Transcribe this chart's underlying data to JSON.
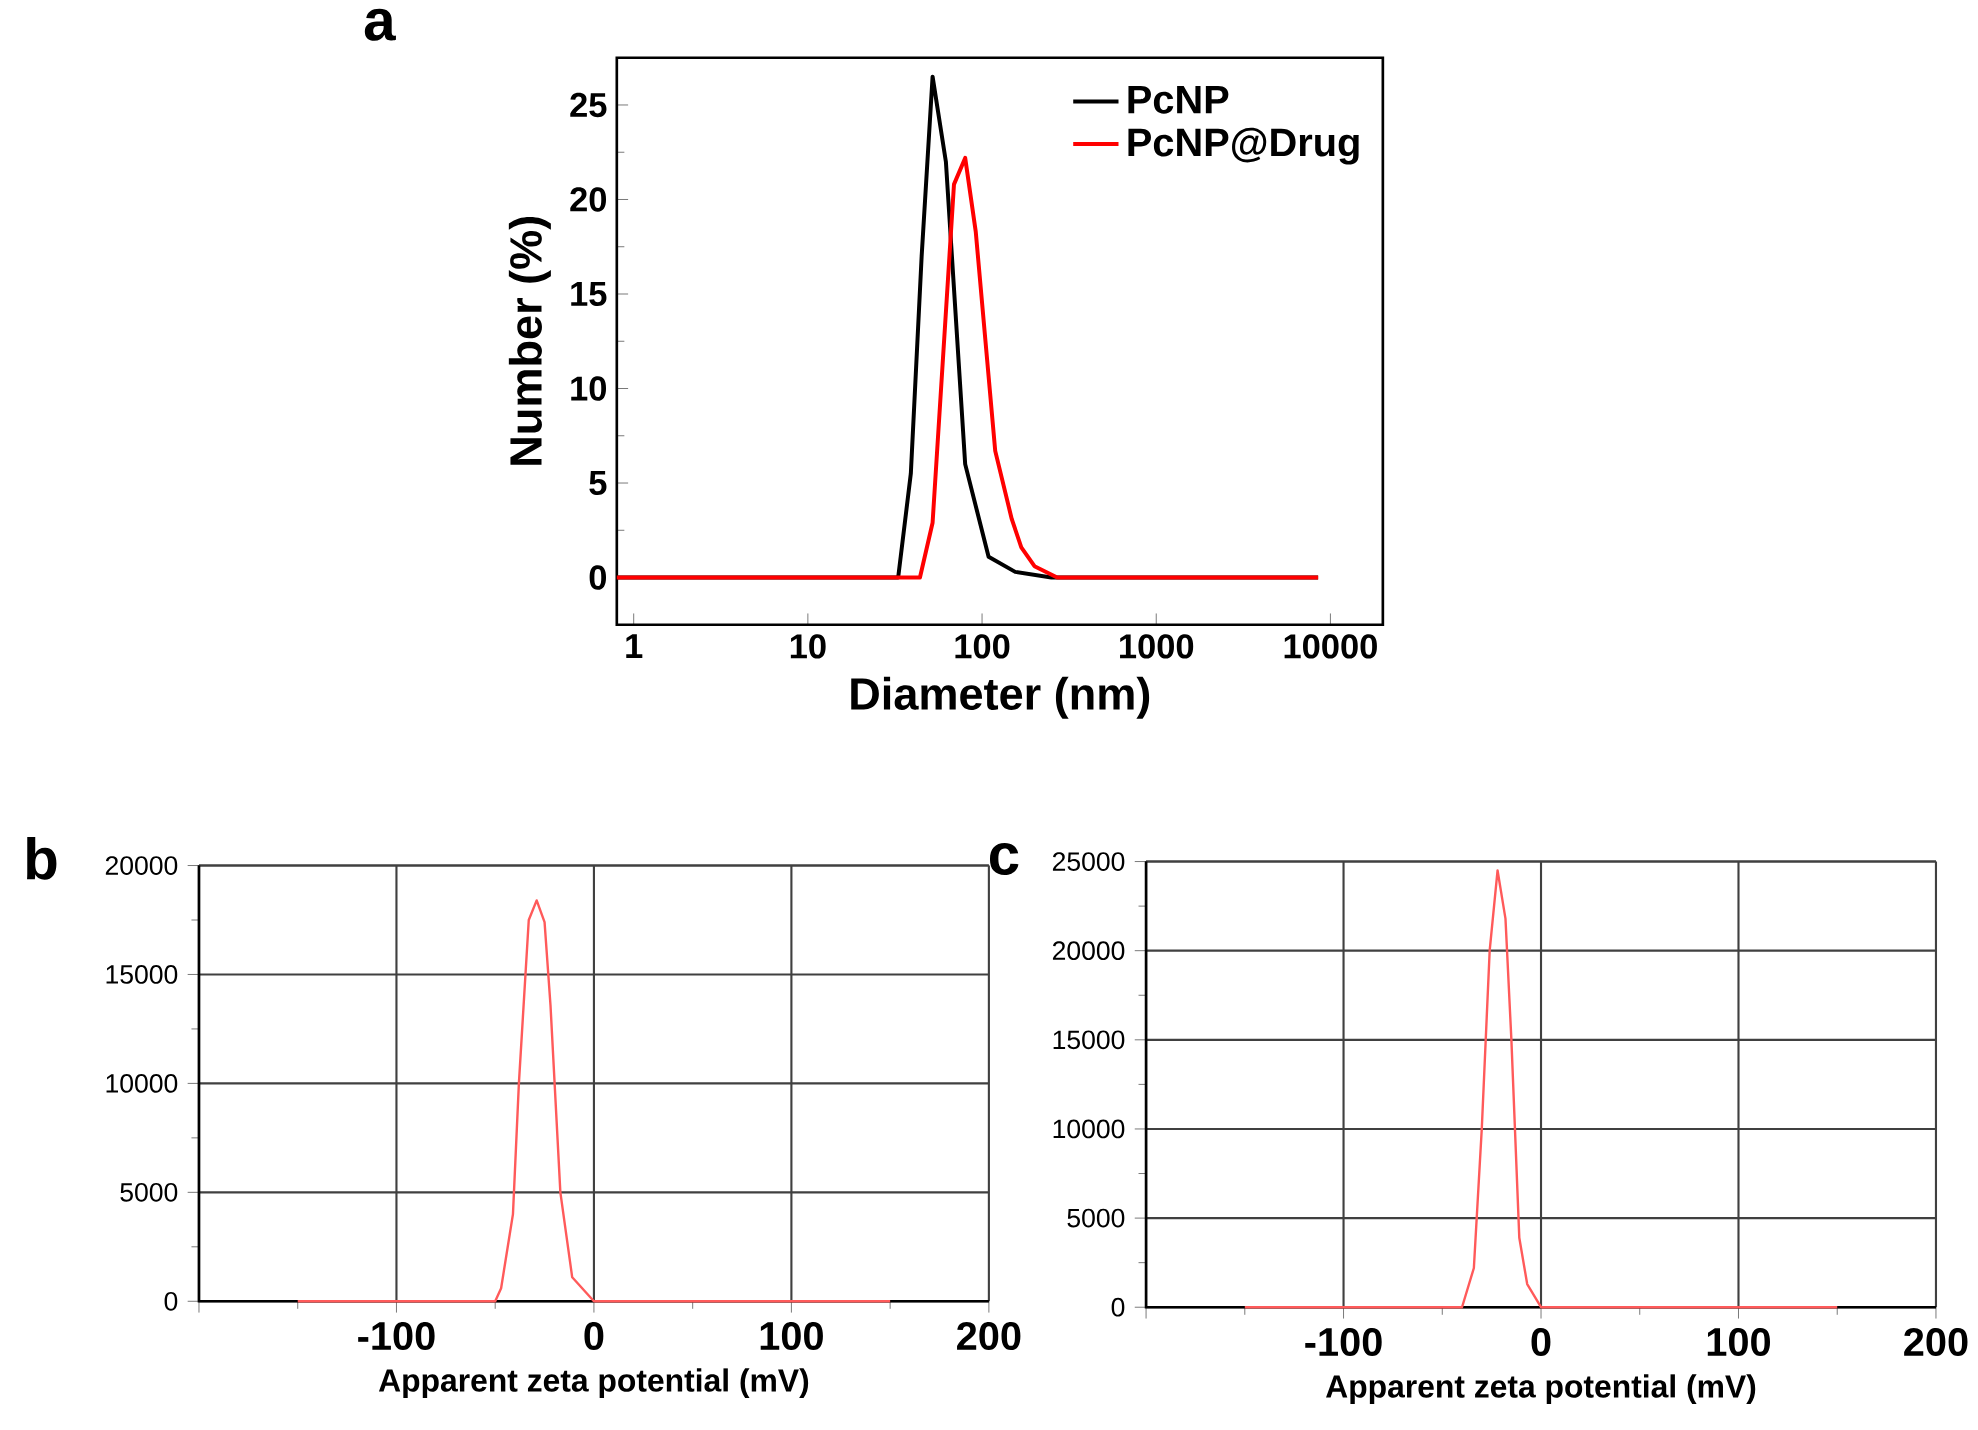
{
  "chart_data": [
    {
      "type": "line",
      "title": "a",
      "xlabel": "Diameter (nm)",
      "ylabel": "Number (%)",
      "log": "x",
      "xlim": [
        0.8,
        20000
      ],
      "ylim": [
        -2.5,
        27.5
      ],
      "xticks": [
        1,
        10,
        100,
        1000,
        10000
      ],
      "yticks": [
        0,
        5,
        10,
        15,
        20,
        25
      ],
      "grid": false,
      "legend": "top right",
      "marker": "none",
      "line_style": "solid",
      "series": [
        {
          "name": "PcNP",
          "color": "#000000",
          "x": [
            0.8,
            33,
            39,
            45,
            52,
            62,
            80,
            109,
            155,
            250,
            8500
          ],
          "values": [
            0,
            0,
            5.5,
            17,
            26.5,
            22,
            6,
            1.1,
            0.3,
            0,
            0
          ]
        },
        {
          "name": "PcNP@Drug",
          "color": "#ff0000",
          "x": [
            0.8,
            44,
            52,
            69,
            80,
            92,
            119,
            148,
            168,
            200,
            270,
            8500
          ],
          "values": [
            0,
            0,
            2.9,
            20.8,
            22.2,
            18.3,
            6.7,
            3.1,
            1.6,
            0.6,
            0,
            0
          ]
        }
      ]
    },
    {
      "type": "line",
      "title": "b",
      "xlabel": "Apparent zeta potential (mV)",
      "xlim": [
        -200,
        200
      ],
      "ylim": [
        0,
        20000
      ],
      "xticks": [
        {
          "value": -200,
          "label": null
        },
        -100,
        0,
        100,
        200
      ],
      "yticks": [
        0,
        5000,
        10000,
        15000,
        20000
      ],
      "grid": true,
      "marker": "none",
      "line_style": "solid",
      "series": [
        {
          "color": "#ff5a5a",
          "x": [
            -150,
            -50,
            -47,
            -41,
            -38,
            -33,
            -29,
            -25,
            -22,
            -17,
            -11,
            0,
            150
          ],
          "values": [
            0,
            0,
            600,
            4000,
            10000,
            17500,
            18400,
            17400,
            13600,
            5000,
            1100,
            0,
            0
          ]
        }
      ]
    },
    {
      "type": "line",
      "title": "c",
      "xlabel": "Apparent zeta potential (mV)",
      "xlim": [
        -200,
        200
      ],
      "ylim": [
        0,
        25000
      ],
      "xticks": [
        {
          "value": -200,
          "label": null
        },
        -100,
        0,
        100,
        200
      ],
      "yticks": [
        0,
        5000,
        10000,
        15000,
        20000,
        25000
      ],
      "grid": true,
      "marker": "none",
      "line_style": "solid",
      "series": [
        {
          "color": "#ff5a5a",
          "x": [
            -150,
            -40,
            -34,
            -30,
            -26,
            -22,
            -18,
            -15,
            -11,
            -7,
            0,
            150
          ],
          "values": [
            0,
            0,
            2200,
            10000,
            20000,
            24500,
            21800,
            15000,
            3900,
            1300,
            0,
            0
          ]
        }
      ]
    }
  ]
}
